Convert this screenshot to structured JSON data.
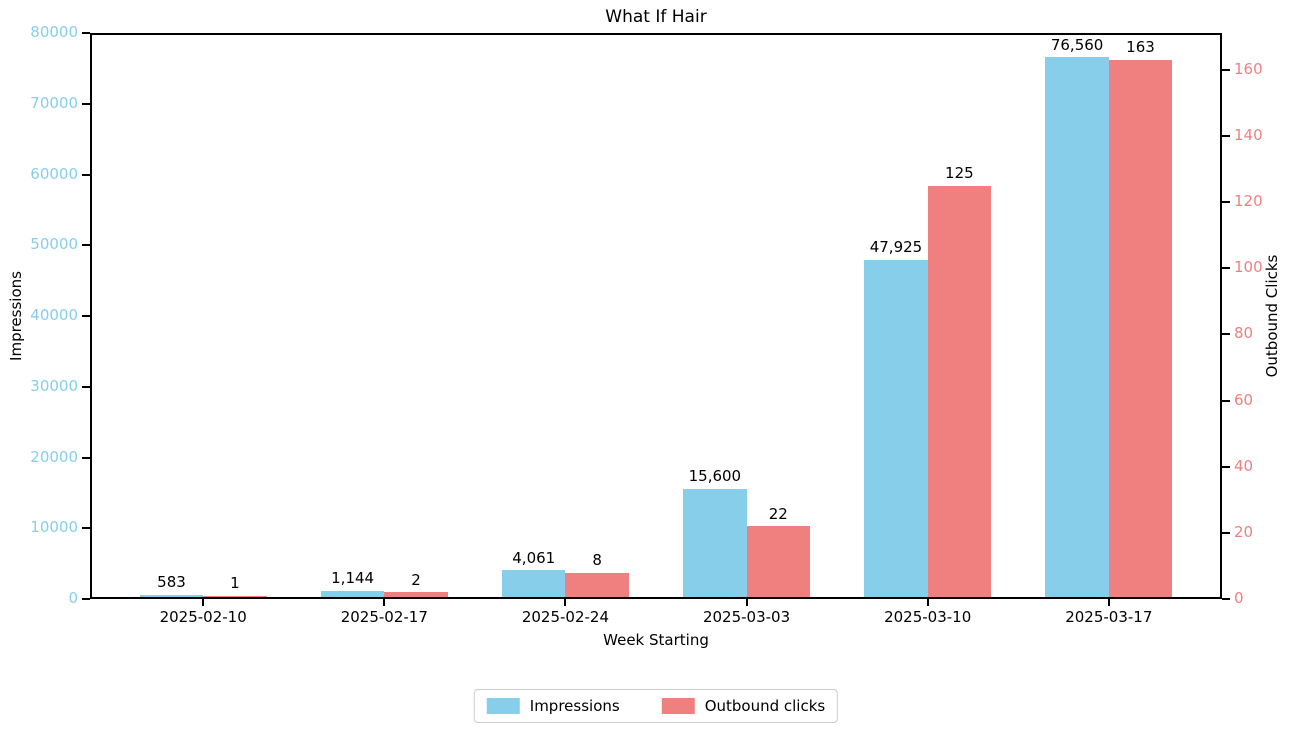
{
  "chart_data": {
    "type": "bar",
    "title": "What If Hair",
    "xlabel": "Week Starting",
    "categories": [
      "2025-02-10",
      "2025-02-17",
      "2025-02-24",
      "2025-03-03",
      "2025-03-10",
      "2025-03-17"
    ],
    "series": [
      {
        "name": "Impressions",
        "axis": "left",
        "color": "#87CEEB",
        "values": [
          583,
          1144,
          4061,
          15600,
          47925,
          76560
        ],
        "value_labels": [
          "583",
          "1,144",
          "4,061",
          "15,600",
          "47,925",
          "76,560"
        ]
      },
      {
        "name": "Outbound clicks",
        "axis": "right",
        "color": "#F08080",
        "values": [
          1,
          2,
          8,
          22,
          125,
          163
        ],
        "value_labels": [
          "1",
          "2",
          "8",
          "22",
          "125",
          "163"
        ]
      }
    ],
    "axes": {
      "left": {
        "label": "Impressions",
        "color": "#87CEEB",
        "min": 0,
        "max": 80000,
        "ticks": [
          0,
          10000,
          20000,
          30000,
          40000,
          50000,
          60000,
          70000,
          80000
        ]
      },
      "right": {
        "label": "Outbound Clicks",
        "color": "#F08080",
        "min": 0,
        "max": 171.15,
        "ticks": [
          0,
          20,
          40,
          60,
          80,
          100,
          120,
          140,
          160
        ]
      }
    },
    "legend": {
      "position": "bottom-center",
      "entries": [
        "Impressions",
        "Outbound clicks"
      ]
    },
    "layout": {
      "grid": false,
      "bar_width_units": 0.35,
      "x_units_span": 6.25,
      "x_units_offset": 0.625
    }
  }
}
